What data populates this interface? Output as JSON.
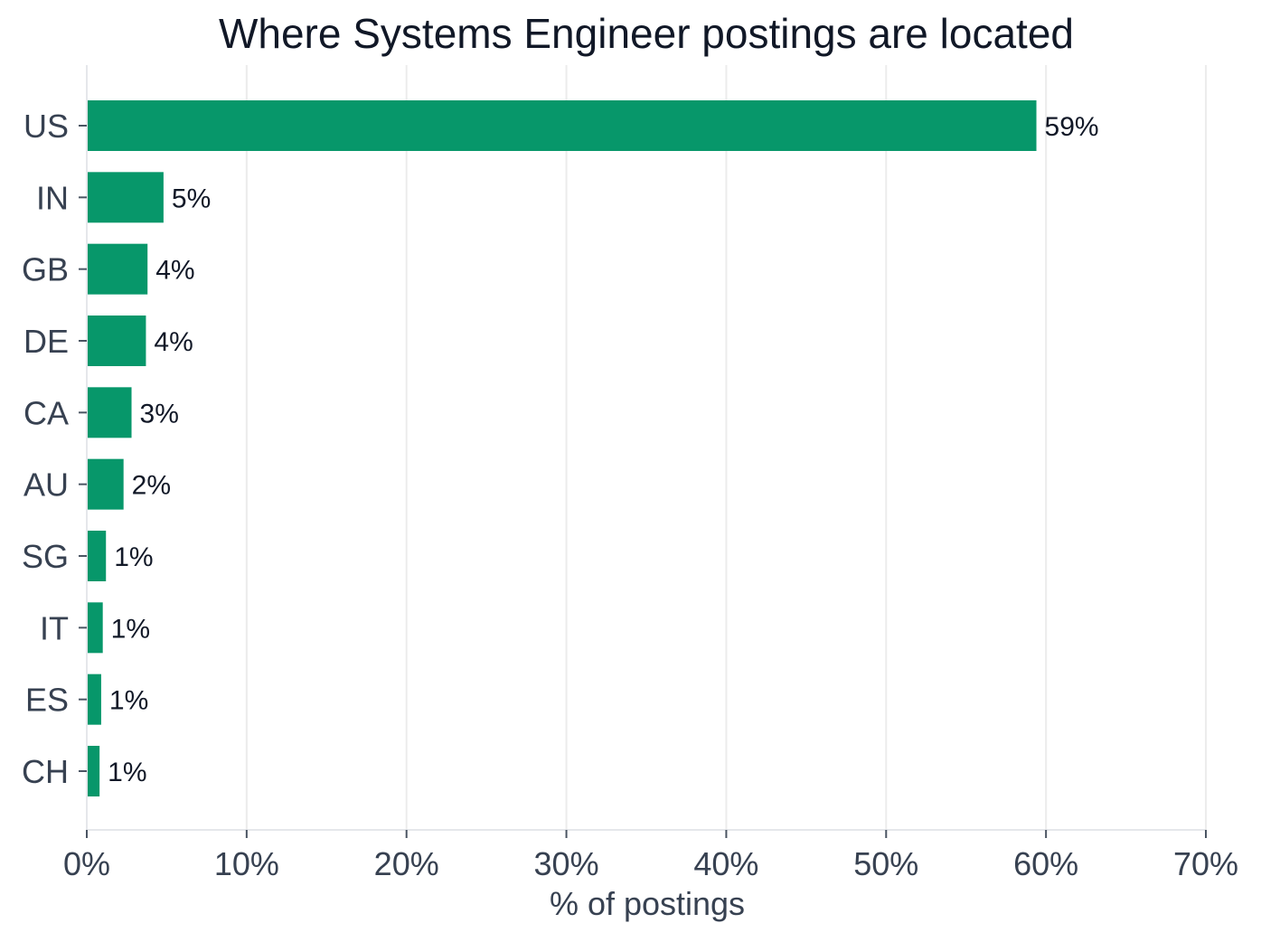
{
  "chart_data": {
    "type": "bar",
    "orientation": "horizontal",
    "title": "Where Systems Engineer postings are located",
    "xlabel": "% of postings",
    "ylabel": "",
    "categories": [
      "US",
      "IN",
      "GB",
      "DE",
      "CA",
      "AU",
      "SG",
      "IT",
      "ES",
      "CH"
    ],
    "values": [
      59.4,
      4.8,
      3.8,
      3.7,
      2.8,
      2.3,
      1.2,
      1.0,
      0.9,
      0.8
    ],
    "value_labels": [
      "59%",
      "5%",
      "4%",
      "4%",
      "3%",
      "2%",
      "1%",
      "1%",
      "1%",
      "1%"
    ],
    "xlim": [
      0,
      70
    ],
    "xticks": [
      0,
      10,
      20,
      30,
      40,
      50,
      60,
      70
    ],
    "xtick_labels": [
      "0%",
      "10%",
      "20%",
      "30%",
      "40%",
      "50%",
      "60%",
      "70%"
    ],
    "grid": "vertical",
    "bar_color": "#07976a"
  }
}
